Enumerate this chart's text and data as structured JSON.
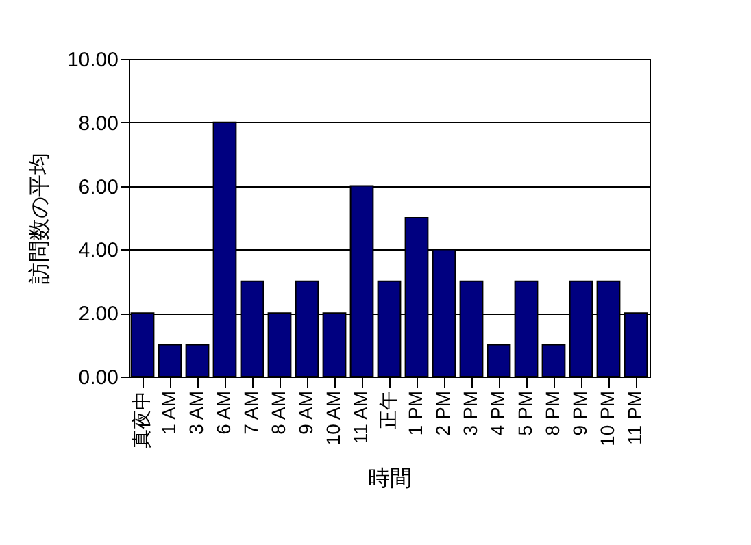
{
  "chart_data": {
    "type": "bar",
    "xlabel": "時間",
    "ylabel": "訪問数の平均",
    "categories": [
      "真夜中",
      "1 AM",
      "3 AM",
      "6 AM",
      "7 AM",
      "8 AM",
      "9 AM",
      "10 AM",
      "11 AM",
      "正午",
      "1 PM",
      "2 PM",
      "3 PM",
      "4 PM",
      "5 PM",
      "8 PM",
      "9 PM",
      "10 PM",
      "11 PM"
    ],
    "values": [
      2,
      1,
      1,
      8,
      3,
      2,
      3,
      2,
      6,
      3,
      5,
      4,
      3,
      1,
      3,
      1,
      3,
      3,
      2
    ],
    "color": "#000080",
    "ylim": [
      0,
      10
    ],
    "yticks": [
      {
        "value": 0,
        "label": "0.00"
      },
      {
        "value": 2,
        "label": "2.00"
      },
      {
        "value": 4,
        "label": "4.00"
      },
      {
        "value": 6,
        "label": "6.00"
      },
      {
        "value": 8,
        "label": "8.00"
      },
      {
        "value": 10,
        "label": "10.00"
      }
    ],
    "grid": "y"
  }
}
